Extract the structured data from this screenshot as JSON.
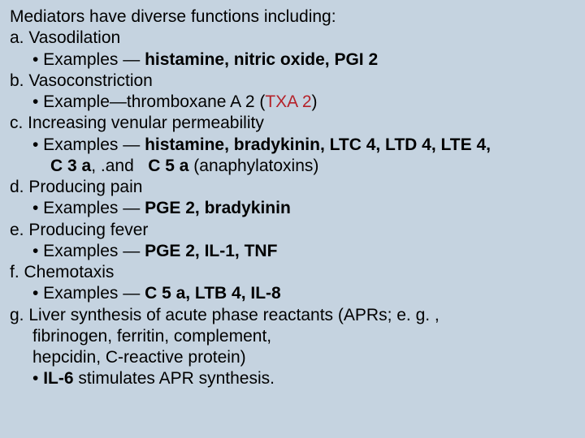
{
  "lines": [
    {
      "cls": "l0",
      "html": "Mediators have diverse functions including:"
    },
    {
      "cls": "l1",
      "html": "a. Vasodilation"
    },
    {
      "cls": "l2",
      "html": "• Examples — <span class=\"bold\">histamine, nitric oxide, PGI 2</span>"
    },
    {
      "cls": "l1",
      "html": "b. Vasoconstriction"
    },
    {
      "cls": "l2",
      "html": "• Example—thromboxane A 2 (<span class=\"red\">TXA 2</span>)"
    },
    {
      "cls": "l1",
      "html": "c. Increasing venular permeability"
    },
    {
      "cls": "l2",
      "html": "• Examples — <span class=\"bold\">histamine, bradykinin, LTC 4, LTD 4, LTE 4,</span>"
    },
    {
      "cls": "l3",
      "html": "<span class=\"bold\">C 3 a</span>, .and   <span class=\"bold\">C 5 a</span> (anaphylatoxins)"
    },
    {
      "cls": "l1",
      "html": "d. Producing pain"
    },
    {
      "cls": "l2",
      "html": "• Examples — <span class=\"bold\">PGE 2, bradykinin</span>"
    },
    {
      "cls": "l1",
      "html": "e. Producing fever"
    },
    {
      "cls": "l2",
      "html": "• Examples — <span class=\"bold\">PGE 2, IL-1, TNF</span>"
    },
    {
      "cls": "l1",
      "html": "f. Chemotaxis"
    },
    {
      "cls": "l2",
      "html": "• Examples — <span class=\"bold\">C 5 a, LTB 4, IL-8</span>"
    },
    {
      "cls": "l1",
      "html": "g. Liver synthesis of acute phase reactants (APRs; e. g. ,"
    },
    {
      "cls": "l2",
      "html": "fibrinogen, ferritin, complement,"
    },
    {
      "cls": "l2",
      "html": "hepcidin, C-reactive protein)"
    },
    {
      "cls": "l2",
      "html": "• <span class=\"bold\">IL-6</span> stimulates APR synthesis."
    }
  ]
}
